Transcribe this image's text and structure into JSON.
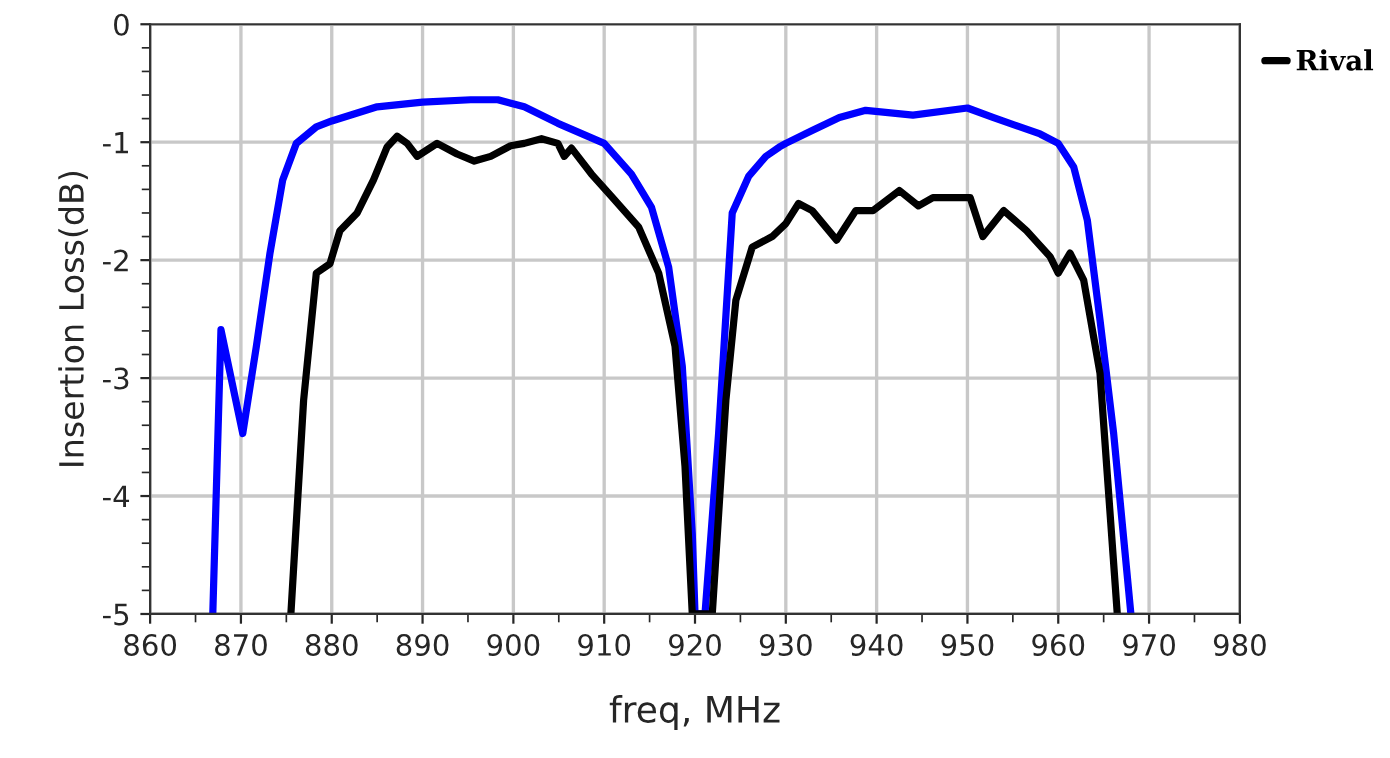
{
  "chart_data": {
    "type": "line",
    "xlabel": "freq, MHz",
    "ylabel": "Insertion Loss(dB)",
    "xlim": [
      860,
      980
    ],
    "ylim": [
      -5,
      0
    ],
    "xticks": [
      860,
      870,
      880,
      890,
      900,
      910,
      920,
      930,
      940,
      950,
      960,
      970,
      980
    ],
    "yticks": [
      -5,
      -4,
      -3,
      -2,
      -1,
      0
    ],
    "grid": true,
    "legend": "top right",
    "marker": "none",
    "line_style": "solid",
    "series": [
      {
        "color": "#0000ff",
        "x": [
          866.9,
          867.8,
          870.2,
          871.7,
          873.2,
          874.6,
          876.1,
          878.3,
          880,
          885,
          890,
          895.3,
          898.3,
          901.2,
          904.9,
          910,
          913,
          915.2,
          917.1,
          918.6,
          919.7,
          920,
          921.1,
          922.6,
          924.1,
          925.9,
          927.8,
          929.3,
          930,
          932.9,
          935.9,
          938.8,
          944,
          950,
          952.8,
          958,
          960,
          961.7,
          963.2,
          964.6,
          966.1,
          968
        ],
        "values": [
          -5,
          -2.59,
          -3.47,
          -2.73,
          -1.94,
          -1.32,
          -1.01,
          -0.87,
          -0.82,
          -0.7,
          -0.66,
          -0.64,
          -0.64,
          -0.7,
          -0.84,
          -1.01,
          -1.27,
          -1.55,
          -2.06,
          -2.9,
          -4.32,
          -5,
          -5,
          -3.47,
          -1.6,
          -1.29,
          -1.12,
          -1.04,
          -1.01,
          -0.9,
          -0.79,
          -0.73,
          -0.77,
          -0.71,
          -0.79,
          -0.93,
          -1.01,
          -1.21,
          -1.66,
          -2.51,
          -3.47,
          -5
        ]
      },
      {
        "name": "Rival",
        "color": "#000000",
        "x": [
          875.5,
          876.9,
          878.3,
          879.8,
          880.9,
          882.8,
          884.6,
          886.1,
          887.2,
          888.3,
          889.4,
          891.6,
          893.8,
          895.7,
          897.5,
          899.7,
          901.2,
          903.1,
          904.9,
          905.6,
          906.4,
          908.6,
          910.8,
          913.8,
          916,
          917.8,
          918.9,
          919.7,
          921.9,
          923.4,
          924.5,
          926.3,
          928.5,
          930,
          931.4,
          932.9,
          935.6,
          937.7,
          939.6,
          942.5,
          944.6,
          946.2,
          950.3,
          951.7,
          954,
          956.5,
          959.1,
          960,
          961.3,
          962.8,
          964.6,
          966.5
        ],
        "values": [
          -5,
          -3.19,
          -2.11,
          -2.03,
          -1.75,
          -1.6,
          -1.32,
          -1.04,
          -0.95,
          -1.01,
          -1.12,
          -1.01,
          -1.1,
          -1.16,
          -1.12,
          -1.03,
          -1.01,
          -0.97,
          -1.01,
          -1.12,
          -1.05,
          -1.27,
          -1.46,
          -1.72,
          -2.11,
          -2.73,
          -3.75,
          -5,
          -5,
          -3.19,
          -2.34,
          -1.89,
          -1.8,
          -1.69,
          -1.52,
          -1.58,
          -1.83,
          -1.58,
          -1.58,
          -1.41,
          -1.54,
          -1.47,
          -1.47,
          -1.8,
          -1.58,
          -1.75,
          -1.97,
          -2.11,
          -1.94,
          -2.17,
          -2.96,
          -5
        ]
      }
    ]
  }
}
